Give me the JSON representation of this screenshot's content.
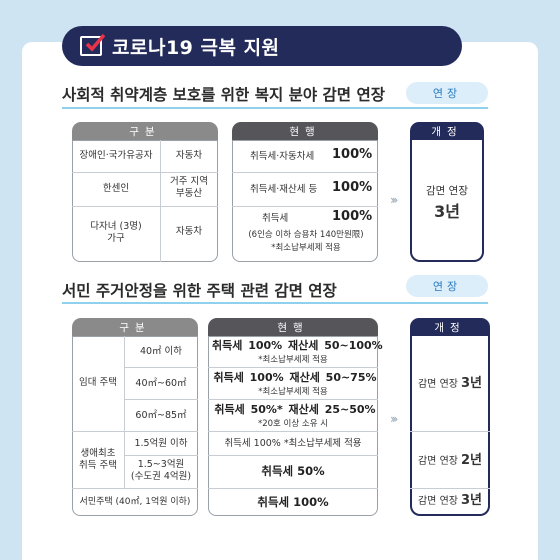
{
  "header": {
    "title": "코로나19 극복 지원"
  },
  "section1": {
    "title": "사회적 취약계층 보호를 위한 복지 분야 감면 연장",
    "pill": "연장",
    "col_headers": [
      "구분",
      "현행",
      "개정"
    ],
    "rows": [
      {
        "group": "장애인·국가유공자",
        "item": "자동차",
        "current_label": "취득세·자동차세",
        "current_value": "100%"
      },
      {
        "group": "한센인",
        "item": "거주 지역\n부동산",
        "current_label": "취득세·재산세 등",
        "current_value": "100%"
      },
      {
        "group": "다자녀 (3명)\n가구",
        "item": "자동차",
        "current_label": "취득세",
        "current_value": "100%",
        "note1": "(6인승 이하 승용차 140만원限)",
        "note2": "*최소납부세제 적용"
      }
    ],
    "revised": {
      "label": "감면 연장",
      "value": "3년"
    }
  },
  "section2": {
    "title": "서민 주거안정을 위한 주택 관련 감면 연장",
    "pill": "연장",
    "col_headers": [
      "구분",
      "현행",
      "개정"
    ],
    "rental": {
      "group": "임대 주택",
      "rows": [
        {
          "size": "40㎡ 이하",
          "line1": "취득세 100%  재산세 50~100%",
          "note": "*최소납부세제 적용"
        },
        {
          "size": "40㎡~60㎡",
          "line1": "취득세 100%  재산세 50~75%",
          "note": "*최소납부세제 적용"
        },
        {
          "size": "60㎡~85㎡",
          "line1": "취득세 50%* 재산세 25~50%",
          "note": "*20호 이상 소유 시"
        }
      ]
    },
    "firsthome": {
      "group": "생애최초\n취득 주택",
      "rows": [
        {
          "size": "1.5억원 이하",
          "line1": "취득세 100%  *최소납부세제 적용"
        },
        {
          "size": "1.5~3억원\n(수도권 4억원)",
          "line1": "취득세 50%"
        }
      ]
    },
    "commoner": {
      "group": "서민주택 (40㎡, 1억원 이하)",
      "line1": "취득세 100%"
    },
    "revised": [
      {
        "label": "감면 연장",
        "value": "3년"
      },
      {
        "label": "감면 연장",
        "value": "2년"
      },
      {
        "label": "감면 연장",
        "value": "3년"
      }
    ]
  },
  "colors": {
    "navy": "#232b5a",
    "pill_bg": "#dbeef9",
    "pill_text": "#2b7bc0",
    "rule": "#8fd0ec",
    "bg": "#cfe4f3"
  }
}
